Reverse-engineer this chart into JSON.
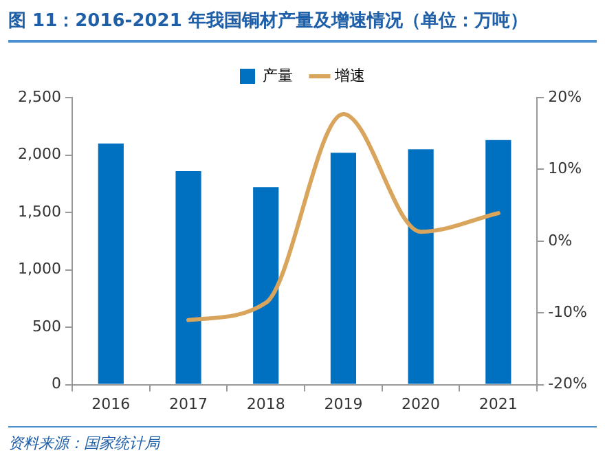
{
  "chart_data": {
    "type": "bar",
    "title": "图 11：2016-2021 年我国铜材产量及增速情况（单位：万吨）",
    "categories": [
      "2016",
      "2017",
      "2018",
      "2019",
      "2020",
      "2021"
    ],
    "series": [
      {
        "name": "产量",
        "color": "#0070c0",
        "values": [
          2100,
          1860,
          1720,
          2020,
          2050,
          2130
        ]
      },
      {
        "name": "增速",
        "type": "line",
        "axis": "y2",
        "color": "#d9a45b",
        "values": [
          null,
          -11.0,
          -8.6,
          17.7,
          1.3,
          3.9
        ]
      }
    ],
    "ylim": [
      0,
      2500
    ],
    "yticks": [
      0,
      {
        "value": 500,
        "label": "500"
      },
      {
        "value": 1000,
        "label": "1,000"
      },
      {
        "value": 1500,
        "label": "1,500"
      },
      {
        "value": 2000,
        "label": "2,000"
      },
      {
        "value": 2500,
        "label": "2,500"
      }
    ],
    "y2lim": [
      -20,
      20
    ],
    "y2ticks": [
      {
        "value": -20,
        "label": "-20%"
      },
      {
        "value": -10,
        "label": "-10%"
      },
      {
        "value": 0,
        "label": "0%"
      },
      {
        "value": 10,
        "label": "10%"
      },
      {
        "value": 20,
        "label": "20%"
      }
    ],
    "grid": false,
    "legend": "top",
    "marker": "none",
    "annotations": [
      "资料来源：国家统计局"
    ]
  }
}
